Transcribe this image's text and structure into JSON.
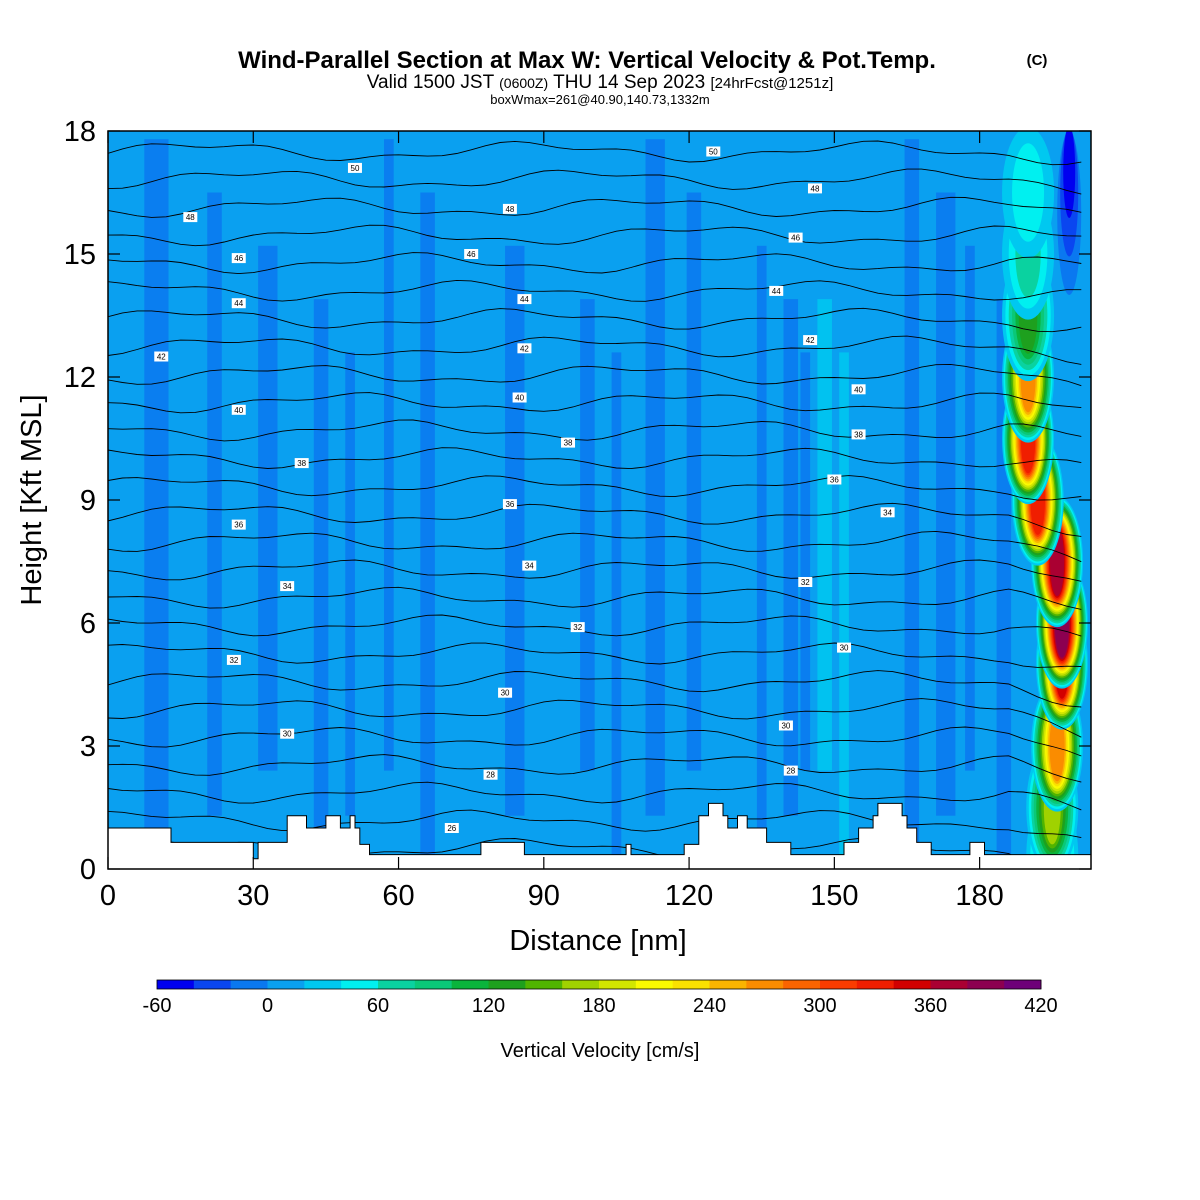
{
  "header": {
    "title": "Wind-Parallel Section at Max W: Vertical Velocity & Pot.Temp.",
    "copyright": "(C)",
    "valid_pre": "Valid 1500 JST",
    "valid_zone": "(0600Z)",
    "valid_date": "THU 14 Sep 2023",
    "forecast": "[24hrFcst@1251z]",
    "boxinfo": "boxWmax=261@40.90,140.73,1332m"
  },
  "colorbar": {
    "label": "Vertical Velocity [cm/s]",
    "min": -60,
    "max": 420,
    "step": 20,
    "tick_values": [
      -60,
      0,
      60,
      120,
      180,
      240,
      300,
      360,
      420
    ],
    "colors": [
      "#0000f0",
      "#0a46f0",
      "#0a78f0",
      "#0aa0f0",
      "#00c8f0",
      "#00f0f0",
      "#0ad2a0",
      "#0ac878",
      "#0ab43c",
      "#1ea01e",
      "#50b400",
      "#a0d200",
      "#d2e600",
      "#fafa00",
      "#fae100",
      "#fab400",
      "#fa8c00",
      "#fa6400",
      "#fa3c00",
      "#f01e00",
      "#d20000",
      "#aa0032",
      "#8c0050",
      "#6e0078"
    ]
  },
  "chart_data": {
    "type": "heatmap",
    "title": "Wind-Parallel Section at Max W: Vertical Velocity & Pot.Temp.",
    "xlabel": "Distance [nm]",
    "ylabel": "Height [Kft MSL]",
    "xlim": [
      0,
      203
    ],
    "ylim": [
      0,
      18
    ],
    "x_ticks": [
      0,
      30,
      60,
      90,
      120,
      150,
      180
    ],
    "y_ticks": [
      0,
      3,
      6,
      9,
      12,
      15,
      18
    ],
    "background_w_cms": 10,
    "updraft_band": [
      {
        "height": 0.3,
        "x_center": 195,
        "w_max": 110
      },
      {
        "height": 1.5,
        "x_center": 195,
        "w_max": 170
      },
      {
        "height": 3.0,
        "x_center": 196,
        "w_max": 260
      },
      {
        "height": 5.0,
        "x_center": 197,
        "w_max": 340
      },
      {
        "height": 6.0,
        "x_center": 197,
        "w_max": 390
      },
      {
        "height": 7.5,
        "x_center": 196,
        "w_max": 360
      },
      {
        "height": 9.0,
        "x_center": 192,
        "w_max": 320
      },
      {
        "height": 10.5,
        "x_center": 190,
        "w_max": 330
      },
      {
        "height": 12.0,
        "x_center": 190,
        "w_max": 260
      },
      {
        "height": 13.5,
        "x_center": 190,
        "w_max": 120
      },
      {
        "height": 15.0,
        "x_center": 190,
        "w_max": 60
      },
      {
        "height": 16.5,
        "x_center": 190,
        "w_max": 30
      }
    ],
    "downdraft": {
      "x_center": 198.5,
      "height_range": [
        14,
        18
      ],
      "w_min": -50
    },
    "terrain_kft": [
      [
        0,
        1.0
      ],
      [
        13,
        1.0
      ],
      [
        13,
        0.65
      ],
      [
        30,
        0.65
      ],
      [
        30,
        0.25
      ],
      [
        31,
        0.25
      ],
      [
        31,
        0.65
      ],
      [
        37,
        0.65
      ],
      [
        37,
        1.3
      ],
      [
        41,
        1.3
      ],
      [
        41,
        1.0
      ],
      [
        45,
        1.0
      ],
      [
        45,
        1.3
      ],
      [
        48,
        1.3
      ],
      [
        48,
        1.0
      ],
      [
        50,
        1.0
      ],
      [
        50,
        1.3
      ],
      [
        51,
        1.3
      ],
      [
        51,
        1.0
      ],
      [
        52,
        1.0
      ],
      [
        52,
        0.6
      ],
      [
        54,
        0.6
      ],
      [
        54,
        0.35
      ],
      [
        77,
        0.35
      ],
      [
        77,
        0.65
      ],
      [
        86,
        0.65
      ],
      [
        86,
        0.35
      ],
      [
        107,
        0.35
      ],
      [
        107,
        0.6
      ],
      [
        108,
        0.6
      ],
      [
        108,
        0.35
      ],
      [
        119,
        0.35
      ],
      [
        119,
        0.6
      ],
      [
        122,
        0.6
      ],
      [
        122,
        1.3
      ],
      [
        124,
        1.3
      ],
      [
        124,
        1.6
      ],
      [
        127,
        1.6
      ],
      [
        127,
        1.3
      ],
      [
        128,
        1.3
      ],
      [
        128,
        1.0
      ],
      [
        130,
        1.0
      ],
      [
        130,
        1.3
      ],
      [
        132,
        1.3
      ],
      [
        132,
        1.0
      ],
      [
        136,
        1.0
      ],
      [
        136,
        0.65
      ],
      [
        141,
        0.65
      ],
      [
        141,
        0.35
      ],
      [
        152,
        0.35
      ],
      [
        152,
        0.65
      ],
      [
        155,
        0.65
      ],
      [
        155,
        1.0
      ],
      [
        158,
        1.0
      ],
      [
        158,
        1.3
      ],
      [
        159,
        1.3
      ],
      [
        159,
        1.6
      ],
      [
        164,
        1.6
      ],
      [
        164,
        1.3
      ],
      [
        165,
        1.3
      ],
      [
        165,
        1.0
      ],
      [
        167,
        1.0
      ],
      [
        167,
        0.65
      ],
      [
        170,
        0.65
      ],
      [
        170,
        0.35
      ],
      [
        178,
        0.35
      ],
      [
        178,
        0.65
      ],
      [
        181,
        0.65
      ],
      [
        181,
        0.35
      ],
      [
        203,
        0.35
      ]
    ],
    "theta_contours_label": "Pot.Temp.",
    "theta_labels": [
      {
        "x": 51,
        "y": 17.1,
        "value": "50"
      },
      {
        "x": 125,
        "y": 17.5,
        "value": "50"
      },
      {
        "x": 17,
        "y": 15.9,
        "value": "48"
      },
      {
        "x": 83,
        "y": 16.1,
        "value": "48"
      },
      {
        "x": 146,
        "y": 16.6,
        "value": "48"
      },
      {
        "x": 27,
        "y": 14.9,
        "value": "46"
      },
      {
        "x": 75,
        "y": 15.0,
        "value": "46"
      },
      {
        "x": 142,
        "y": 15.4,
        "value": "46"
      },
      {
        "x": 27,
        "y": 13.8,
        "value": "44"
      },
      {
        "x": 86,
        "y": 13.9,
        "value": "44"
      },
      {
        "x": 138,
        "y": 14.1,
        "value": "44"
      },
      {
        "x": 11,
        "y": 12.5,
        "value": "42"
      },
      {
        "x": 86,
        "y": 12.7,
        "value": "42"
      },
      {
        "x": 145,
        "y": 12.9,
        "value": "42"
      },
      {
        "x": 27,
        "y": 11.2,
        "value": "40"
      },
      {
        "x": 85,
        "y": 11.5,
        "value": "40"
      },
      {
        "x": 155,
        "y": 11.7,
        "value": "40"
      },
      {
        "x": 40,
        "y": 9.9,
        "value": "38"
      },
      {
        "x": 95,
        "y": 10.4,
        "value": "38"
      },
      {
        "x": 155,
        "y": 10.6,
        "value": "38"
      },
      {
        "x": 27,
        "y": 8.4,
        "value": "36"
      },
      {
        "x": 83,
        "y": 8.9,
        "value": "36"
      },
      {
        "x": 150,
        "y": 9.5,
        "value": "36"
      },
      {
        "x": 37,
        "y": 6.9,
        "value": "34"
      },
      {
        "x": 87,
        "y": 7.4,
        "value": "34"
      },
      {
        "x": 161,
        "y": 8.7,
        "value": "34"
      },
      {
        "x": 26,
        "y": 5.1,
        "value": "32"
      },
      {
        "x": 97,
        "y": 5.9,
        "value": "32"
      },
      {
        "x": 144,
        "y": 7.0,
        "value": "32"
      },
      {
        "x": 82,
        "y": 4.3,
        "value": "30"
      },
      {
        "x": 152,
        "y": 5.4,
        "value": "30"
      },
      {
        "x": 37,
        "y": 3.3,
        "value": "30"
      },
      {
        "x": 140,
        "y": 3.5,
        "value": "30"
      },
      {
        "x": 79,
        "y": 2.3,
        "value": "28"
      },
      {
        "x": 141,
        "y": 2.4,
        "value": "28"
      },
      {
        "x": 71,
        "y": 1.0,
        "value": "26"
      }
    ]
  }
}
